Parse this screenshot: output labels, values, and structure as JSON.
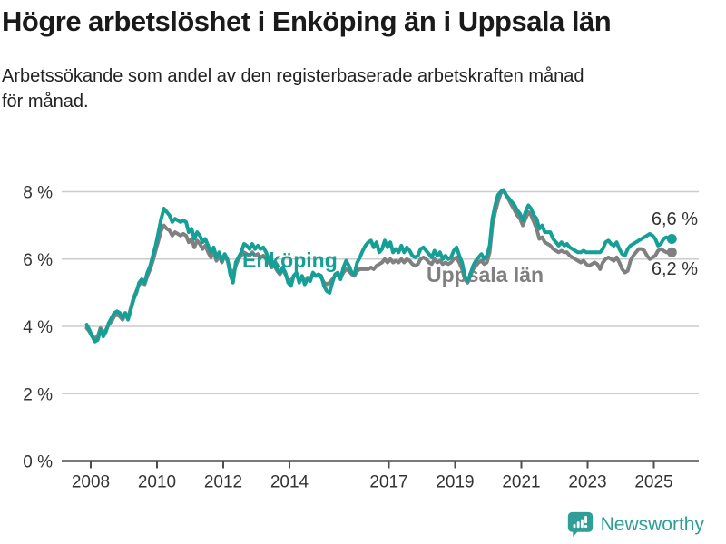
{
  "header": {
    "title": "Högre arbetslöshet i Enköping än i Uppsala län",
    "subtitle_line1": "Arbetssökande som andel av den registerbaserade arbetskraften månad",
    "subtitle_line2": "för månad."
  },
  "chart_data": {
    "type": "line",
    "title": "Högre arbetslöshet i Enköping än i Uppsala län",
    "subtitle": "Arbetssökande som andel av den registerbaserade arbetskraften månad för månad.",
    "x_interval": "monthly",
    "x_start_year": 2008,
    "x_start_month": 1,
    "x_end": "2025-09",
    "ylim": [
      0,
      8.6
    ],
    "grid": "horizontal",
    "legend_position": "inline-labels",
    "colors": {
      "accent_teal": "#14a096",
      "neutral_gray": "#808080",
      "gridline": "#cccccc",
      "axis": "#4d4d4d",
      "tick_text": "#333333",
      "value_label_text": "#333333"
    },
    "y_ticks": [
      {
        "value": 0,
        "label": "0 %"
      },
      {
        "value": 2,
        "label": "2 %"
      },
      {
        "value": 4,
        "label": "4 %"
      },
      {
        "value": 6,
        "label": "6 %"
      },
      {
        "value": 8,
        "label": "8 %"
      }
    ],
    "x_ticks": [
      {
        "year": 2008,
        "label": "2008"
      },
      {
        "year": 2010,
        "label": "2010"
      },
      {
        "year": 2012,
        "label": "2012"
      },
      {
        "year": 2014,
        "label": "2014"
      },
      {
        "year": 2017,
        "label": "2017"
      },
      {
        "year": 2019,
        "label": "2019"
      },
      {
        "year": 2021,
        "label": "2021"
      },
      {
        "year": 2023,
        "label": "2023"
      },
      {
        "year": 2025,
        "label": "2025"
      }
    ],
    "series": [
      {
        "name": "Uppsala län",
        "color": "#808080",
        "end_value_label": "6,2 %",
        "values": [
          3.95,
          3.85,
          3.7,
          3.65,
          3.7,
          3.95,
          3.8,
          3.9,
          4.05,
          4.15,
          4.3,
          4.35,
          4.3,
          4.2,
          4.35,
          4.25,
          4.55,
          4.85,
          5.05,
          5.25,
          5.3,
          5.25,
          5.5,
          5.7,
          5.95,
          6.25,
          6.55,
          6.85,
          7.0,
          6.9,
          6.85,
          6.7,
          6.8,
          6.75,
          6.7,
          6.75,
          6.7,
          6.5,
          6.6,
          6.35,
          6.55,
          6.45,
          6.3,
          6.4,
          6.2,
          6.05,
          6.2,
          5.95,
          6.1,
          5.9,
          6.1,
          5.95,
          5.7,
          5.55,
          5.8,
          6.0,
          6.1,
          6.2,
          6.15,
          6.1,
          6.2,
          6.1,
          6.15,
          6.05,
          6.1,
          6.0,
          5.9,
          5.75,
          5.8,
          5.65,
          5.55,
          5.7,
          5.55,
          5.4,
          5.35,
          5.5,
          5.55,
          5.35,
          5.5,
          5.3,
          5.45,
          5.4,
          5.55,
          5.5,
          5.5,
          5.45,
          5.3,
          5.25,
          5.3,
          5.4,
          5.5,
          5.55,
          5.45,
          5.6,
          5.7,
          5.65,
          5.55,
          5.5,
          5.65,
          5.7,
          5.7,
          5.7,
          5.7,
          5.75,
          5.7,
          5.8,
          5.85,
          5.9,
          6.0,
          5.9,
          6.0,
          5.9,
          5.95,
          5.9,
          6.0,
          5.9,
          6.0,
          5.95,
          5.85,
          5.8,
          5.85,
          6.0,
          6.05,
          6.0,
          5.9,
          5.85,
          6.0,
          5.9,
          5.95,
          5.85,
          5.9,
          5.85,
          5.9,
          6.0,
          6.05,
          5.9,
          5.7,
          5.4,
          5.3,
          5.5,
          5.7,
          5.8,
          5.9,
          5.95,
          5.85,
          5.9,
          6.2,
          7.0,
          7.4,
          7.7,
          7.95,
          8.05,
          7.9,
          7.75,
          7.6,
          7.45,
          7.3,
          7.2,
          7.0,
          7.2,
          7.4,
          7.3,
          7.1,
          6.9,
          6.6,
          6.65,
          6.5,
          6.45,
          6.4,
          6.3,
          6.25,
          6.2,
          6.25,
          6.2,
          6.2,
          6.1,
          6.05,
          6.0,
          5.95,
          5.9,
          5.95,
          5.85,
          5.8,
          5.85,
          5.9,
          5.85,
          5.7,
          5.9,
          6.0,
          6.05,
          6.0,
          5.95,
          6.05,
          5.9,
          5.7,
          5.6,
          5.65,
          5.95,
          6.1,
          6.2,
          6.3,
          6.3,
          6.25,
          6.1,
          6.0,
          6.05,
          6.1,
          6.25,
          6.3,
          6.25,
          6.2,
          6.2,
          6.2
        ]
      },
      {
        "name": "Enköping",
        "color": "#14a096",
        "end_value_label": "6,6 %",
        "values": [
          4.05,
          3.9,
          3.7,
          3.55,
          3.6,
          3.9,
          3.7,
          3.85,
          4.1,
          4.25,
          4.4,
          4.45,
          4.4,
          4.25,
          4.4,
          4.2,
          4.5,
          4.8,
          5.0,
          5.3,
          5.4,
          5.3,
          5.6,
          5.8,
          6.1,
          6.4,
          6.8,
          7.2,
          7.5,
          7.4,
          7.3,
          7.1,
          7.2,
          7.15,
          7.1,
          7.15,
          7.1,
          6.8,
          6.9,
          6.6,
          6.8,
          6.7,
          6.5,
          6.6,
          6.4,
          6.2,
          6.35,
          6.05,
          6.2,
          5.95,
          6.15,
          6.0,
          5.55,
          5.3,
          5.9,
          6.05,
          6.2,
          6.45,
          6.4,
          6.3,
          6.45,
          6.3,
          6.4,
          6.3,
          6.35,
          6.2,
          6.0,
          5.8,
          5.9,
          5.7,
          5.6,
          5.75,
          5.6,
          5.3,
          5.2,
          5.5,
          5.6,
          5.3,
          5.5,
          5.25,
          5.4,
          5.35,
          5.6,
          5.5,
          5.55,
          5.5,
          5.2,
          5.05,
          5.0,
          5.3,
          5.55,
          5.6,
          5.4,
          5.75,
          5.95,
          5.8,
          5.6,
          5.55,
          5.9,
          6.05,
          6.25,
          6.4,
          6.5,
          6.55,
          6.35,
          6.5,
          6.2,
          6.3,
          6.55,
          6.35,
          6.5,
          6.2,
          6.3,
          6.2,
          6.4,
          6.2,
          6.35,
          6.25,
          6.1,
          6.05,
          6.1,
          6.3,
          6.35,
          6.25,
          6.15,
          6.05,
          6.25,
          6.1,
          6.2,
          6.0,
          6.1,
          6.0,
          6.05,
          6.25,
          6.35,
          6.1,
          5.9,
          5.5,
          5.35,
          5.55,
          5.8,
          5.95,
          6.05,
          6.15,
          6.0,
          6.1,
          6.4,
          7.2,
          7.6,
          7.9,
          8.0,
          8.05,
          7.9,
          7.8,
          7.7,
          7.6,
          7.45,
          7.35,
          7.15,
          7.4,
          7.6,
          7.5,
          7.3,
          7.2,
          6.9,
          7.0,
          6.8,
          6.8,
          6.8,
          6.6,
          6.5,
          6.4,
          6.5,
          6.4,
          6.45,
          6.35,
          6.3,
          6.25,
          6.2,
          6.2,
          6.25,
          6.2,
          6.2,
          6.2,
          6.2,
          6.2,
          6.2,
          6.3,
          6.5,
          6.55,
          6.45,
          6.4,
          6.5,
          6.3,
          6.15,
          6.1,
          6.3,
          6.4,
          6.45,
          6.5,
          6.55,
          6.6,
          6.65,
          6.7,
          6.75,
          6.7,
          6.6,
          6.4,
          6.45,
          6.6,
          6.65,
          6.6,
          6.6
        ]
      }
    ]
  },
  "footer": {
    "brand": "Newsworthy",
    "brand_color": "#2f9e96",
    "logo_icon": "newsworthy-speech-bubble-bar-chart-icon"
  }
}
